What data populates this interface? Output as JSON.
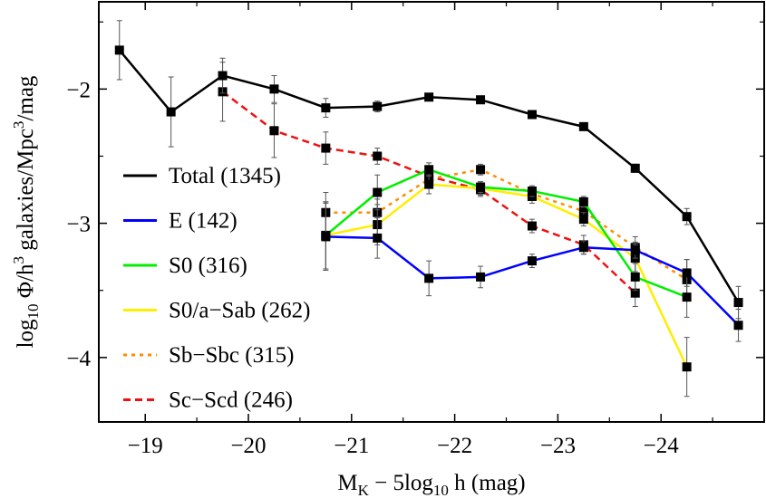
{
  "chart_data": {
    "type": "line",
    "title": "",
    "xlabel": "M_K − 5log_10 h (mag)",
    "ylabel": "log_10 Φ/h^3 galaxies/Mpc^3/mag",
    "xlim": [
      -18.55,
      -25.0
    ],
    "ylim": [
      -4.48,
      -1.35
    ],
    "x_inverted": true,
    "grid": false,
    "legend_position": "left",
    "x_ticks": [
      {
        "value": -19,
        "label": "−19"
      },
      {
        "value": -20,
        "label": "−20"
      },
      {
        "value": -21,
        "label": "−21"
      },
      {
        "value": -22,
        "label": "−22"
      },
      {
        "value": -23,
        "label": "−23"
      },
      {
        "value": -24,
        "label": "−24"
      }
    ],
    "y_ticks": [
      {
        "value": -2,
        "label": "−2"
      },
      {
        "value": -3,
        "label": "−3"
      },
      {
        "value": -4,
        "label": "−4"
      }
    ],
    "series": [
      {
        "name": "Total (1345)",
        "color": "#000000",
        "dash": "solid",
        "markers": true,
        "x": [
          -18.75,
          -19.25,
          -19.75,
          -20.25,
          -20.75,
          -21.25,
          -21.75,
          -22.25,
          -22.75,
          -23.25,
          -23.75,
          -24.25,
          -24.75
        ],
        "y": [
          -1.71,
          -2.17,
          -1.9,
          -2.0,
          -2.14,
          -2.13,
          -2.06,
          -2.08,
          -2.19,
          -2.28,
          -2.59,
          -2.95,
          -3.59
        ],
        "err": [
          0.22,
          0.26,
          0.13,
          0.1,
          0.07,
          0.04,
          0.02,
          0.02,
          0.02,
          0.02,
          0.03,
          0.06,
          0.12
        ]
      },
      {
        "name": "E (142)",
        "color": "#0000ff",
        "dash": "solid",
        "markers": true,
        "x": [
          -20.75,
          -21.25,
          -21.75,
          -22.25,
          -22.75,
          -23.25,
          -23.75,
          -24.25,
          -24.75
        ],
        "y": [
          -3.1,
          -3.11,
          -3.41,
          -3.4,
          -3.28,
          -3.18,
          -3.2,
          -3.37,
          -3.76
        ],
        "err": [
          0.25,
          0.15,
          0.13,
          0.08,
          0.05,
          0.05,
          0.06,
          0.1,
          0.12
        ]
      },
      {
        "name": "S0 (316)",
        "color": "#00ee00",
        "dash": "solid",
        "markers": true,
        "x": [
          -20.75,
          -21.25,
          -21.75,
          -22.25,
          -22.75,
          -23.25,
          -23.75,
          -24.25
        ],
        "y": [
          -3.09,
          -2.77,
          -2.6,
          -2.73,
          -2.76,
          -2.84,
          -3.4,
          -3.55
        ],
        "err": [
          0.25,
          0.13,
          0.05,
          0.04,
          0.04,
          0.04,
          0.1,
          0.15
        ]
      },
      {
        "name": "S0/a−Sab (262)",
        "color": "#ffee00",
        "dash": "solid",
        "markers": true,
        "x": [
          -20.75,
          -21.25,
          -21.75,
          -22.25,
          -22.75,
          -23.25,
          -23.75,
          -24.25
        ],
        "y": [
          -3.09,
          -3.01,
          -2.71,
          -2.74,
          -2.8,
          -2.97,
          -3.26,
          -4.07
        ],
        "err": [
          0.25,
          0.15,
          0.07,
          0.05,
          0.05,
          0.05,
          0.1,
          0.22
        ]
      },
      {
        "name": "Sb−Sbc (315)",
        "color": "#ff8c00",
        "dash": "dotted",
        "markers": true,
        "x": [
          -20.75,
          -21.25,
          -21.75,
          -22.25,
          -22.75,
          -23.25,
          -23.75,
          -24.25
        ],
        "y": [
          -2.92,
          -2.92,
          -2.67,
          -2.6,
          -2.78,
          -2.91,
          -3.18,
          -3.42
        ],
        "err": [
          0.15,
          0.1,
          0.06,
          0.04,
          0.04,
          0.05,
          0.08,
          0.15
        ]
      },
      {
        "name": "Sc−Scd (246)",
        "color": "#ee1111",
        "dash": "dashed",
        "markers": true,
        "x": [
          -19.75,
          -20.25,
          -20.75,
          -21.25,
          -21.75,
          -22.25,
          -22.75,
          -23.25,
          -23.75
        ],
        "y": [
          -2.02,
          -2.31,
          -2.44,
          -2.5,
          -2.65,
          -2.75,
          -3.02,
          -3.16,
          -3.52
        ],
        "err": [
          0.22,
          0.2,
          0.12,
          0.06,
          0.06,
          0.05,
          0.05,
          0.07,
          0.1
        ]
      }
    ]
  }
}
